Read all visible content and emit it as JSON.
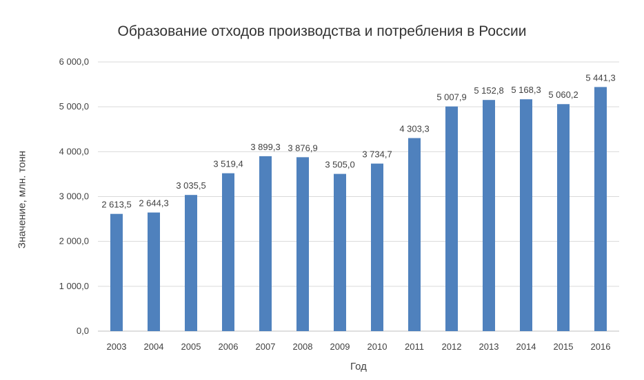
{
  "chart_data": {
    "type": "bar",
    "title": "Образование отходов производства и потребления в России",
    "xlabel": "Год",
    "ylabel": "Значение, млн. тонн",
    "categories": [
      "2003",
      "2004",
      "2005",
      "2006",
      "2007",
      "2008",
      "2009",
      "2010",
      "2011",
      "2012",
      "2013",
      "2014",
      "2015",
      "2016"
    ],
    "values": [
      2613.5,
      2644.3,
      3035.5,
      3519.4,
      3899.3,
      3876.9,
      3505.0,
      3734.7,
      4303.3,
      5007.9,
      5152.8,
      5168.3,
      5060.2,
      5441.3
    ],
    "data_labels": [
      "2 613,5",
      "2 644,3",
      "3 035,5",
      "3 519,4",
      "3 899,3",
      "3 876,9",
      "3 505,0",
      "3 734,7",
      "4 303,3",
      "5 007,9",
      "5 152,8",
      "5 168,3",
      "5 060,2",
      "5 441,3"
    ],
    "ylim": [
      0,
      6000
    ],
    "yticks": [
      0,
      1000,
      2000,
      3000,
      4000,
      5000,
      6000
    ],
    "ytick_labels": [
      "0,0",
      "1 000,0",
      "2 000,0",
      "3 000,0",
      "4 000,0",
      "5 000,0",
      "6 000,0"
    ],
    "bar_color": "#4f81bd",
    "grid": true,
    "legend": "none"
  }
}
